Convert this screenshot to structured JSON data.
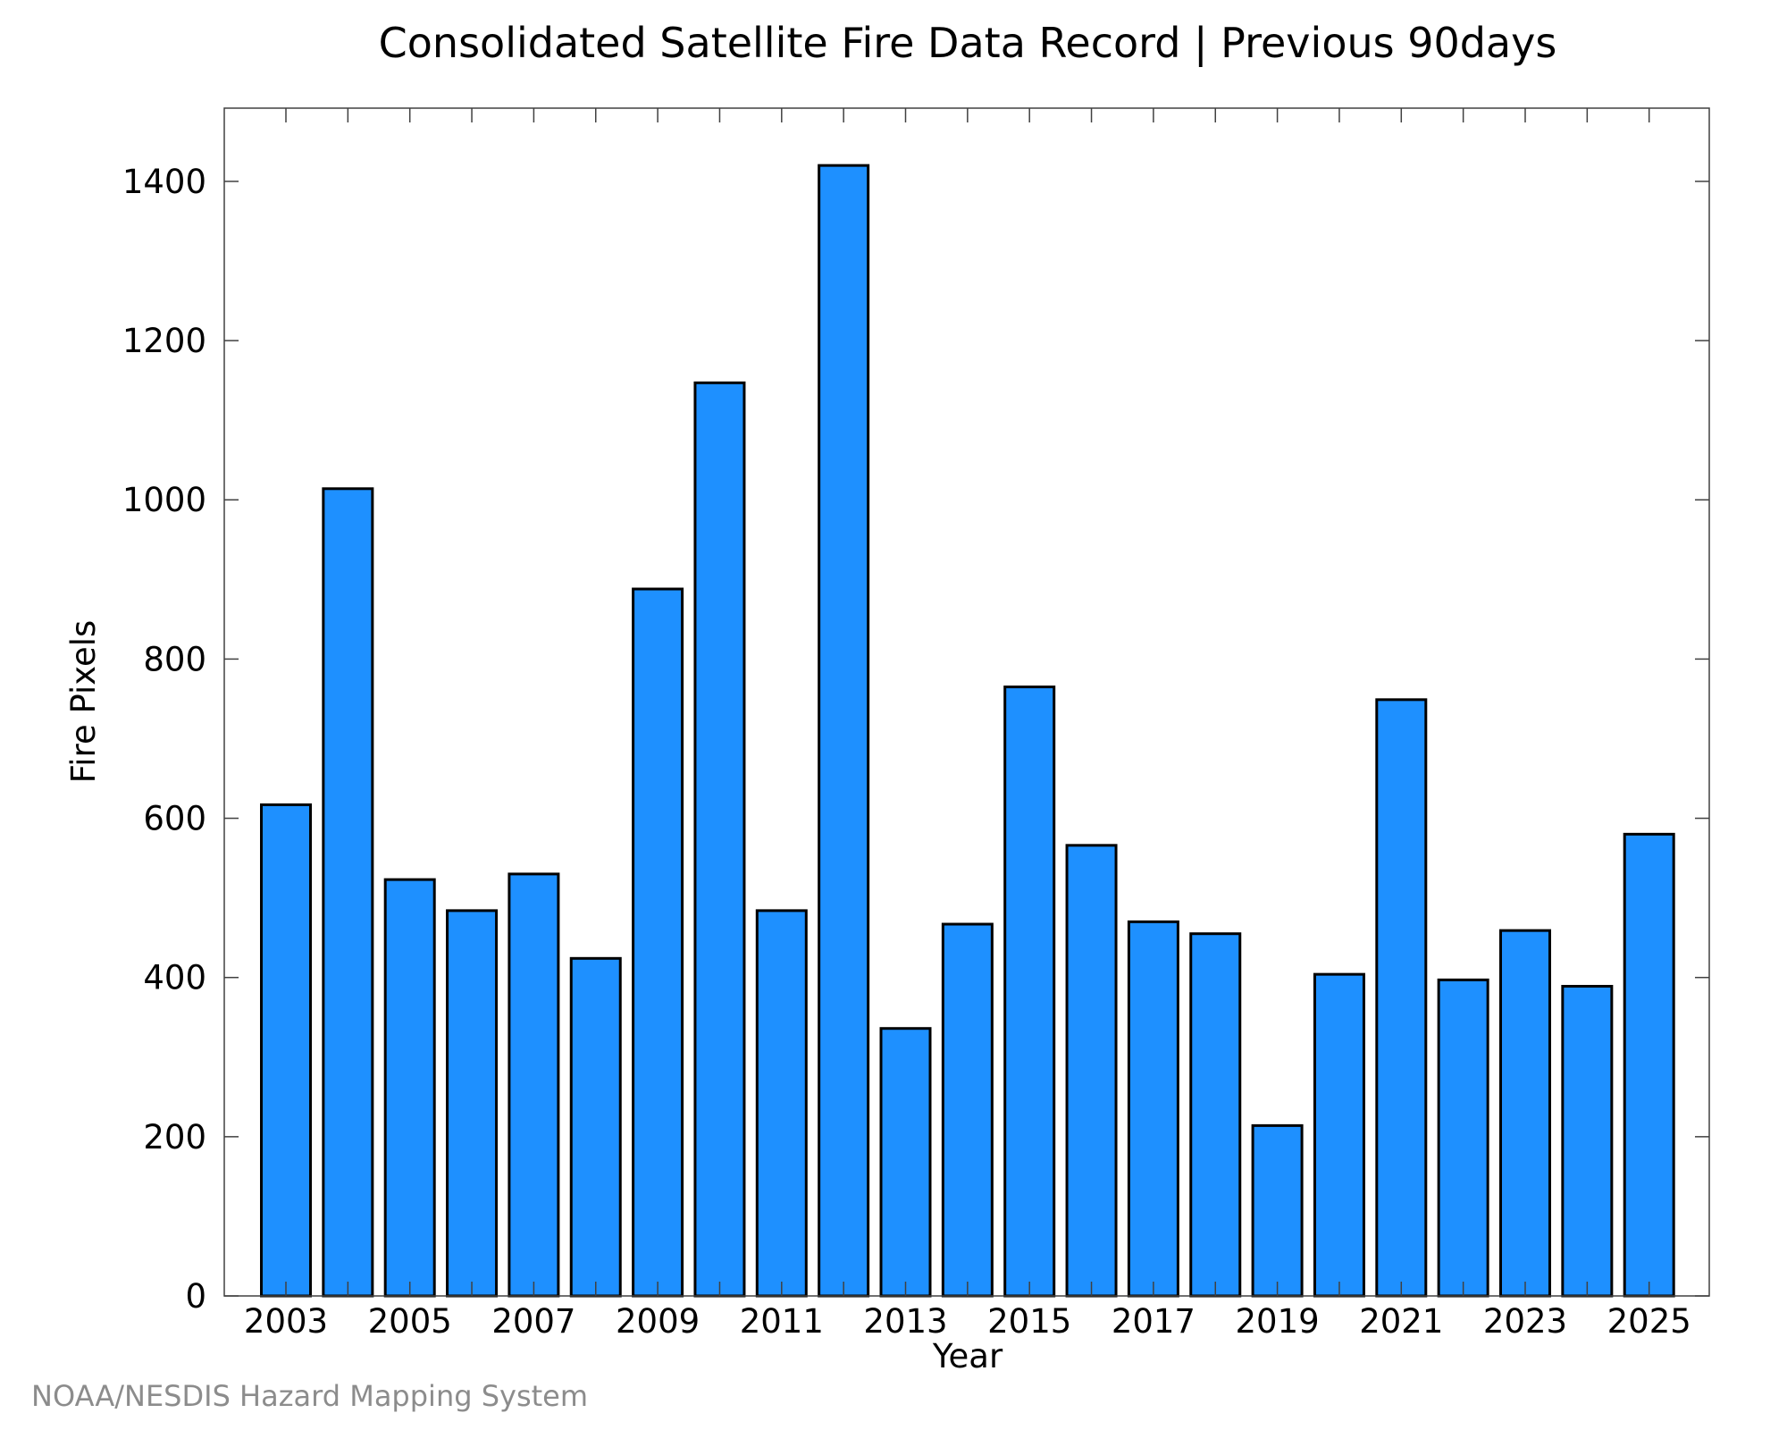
{
  "chart_data": {
    "type": "bar",
    "title": "Consolidated Satellite Fire Data Record | Previous 90days",
    "xlabel": "Year",
    "ylabel": "Fire Pixels",
    "categories": [
      "2003",
      "2004",
      "2005",
      "2006",
      "2007",
      "2008",
      "2009",
      "2010",
      "2011",
      "2012",
      "2013",
      "2014",
      "2015",
      "2016",
      "2017",
      "2018",
      "2019",
      "2020",
      "2021",
      "2022",
      "2023",
      "2024",
      "2025"
    ],
    "values": [
      617,
      1014,
      523,
      484,
      530,
      424,
      888,
      1147,
      484,
      1420,
      336,
      467,
      765,
      566,
      470,
      455,
      214,
      404,
      749,
      397,
      459,
      389,
      580
    ],
    "x_tick_labels": [
      "2003",
      "2005",
      "2007",
      "2009",
      "2011",
      "2013",
      "2015",
      "2017",
      "2019",
      "2021",
      "2023",
      "2025"
    ],
    "y_ticks": [
      0,
      200,
      400,
      600,
      800,
      1000,
      1200,
      1400
    ],
    "ylim": [
      0,
      1492
    ],
    "grid": false,
    "bar_color": "#1e90ff",
    "bar_edge_color": "#000000"
  },
  "footer": {
    "credit": "NOAA/NESDIS Hazard Mapping System"
  }
}
